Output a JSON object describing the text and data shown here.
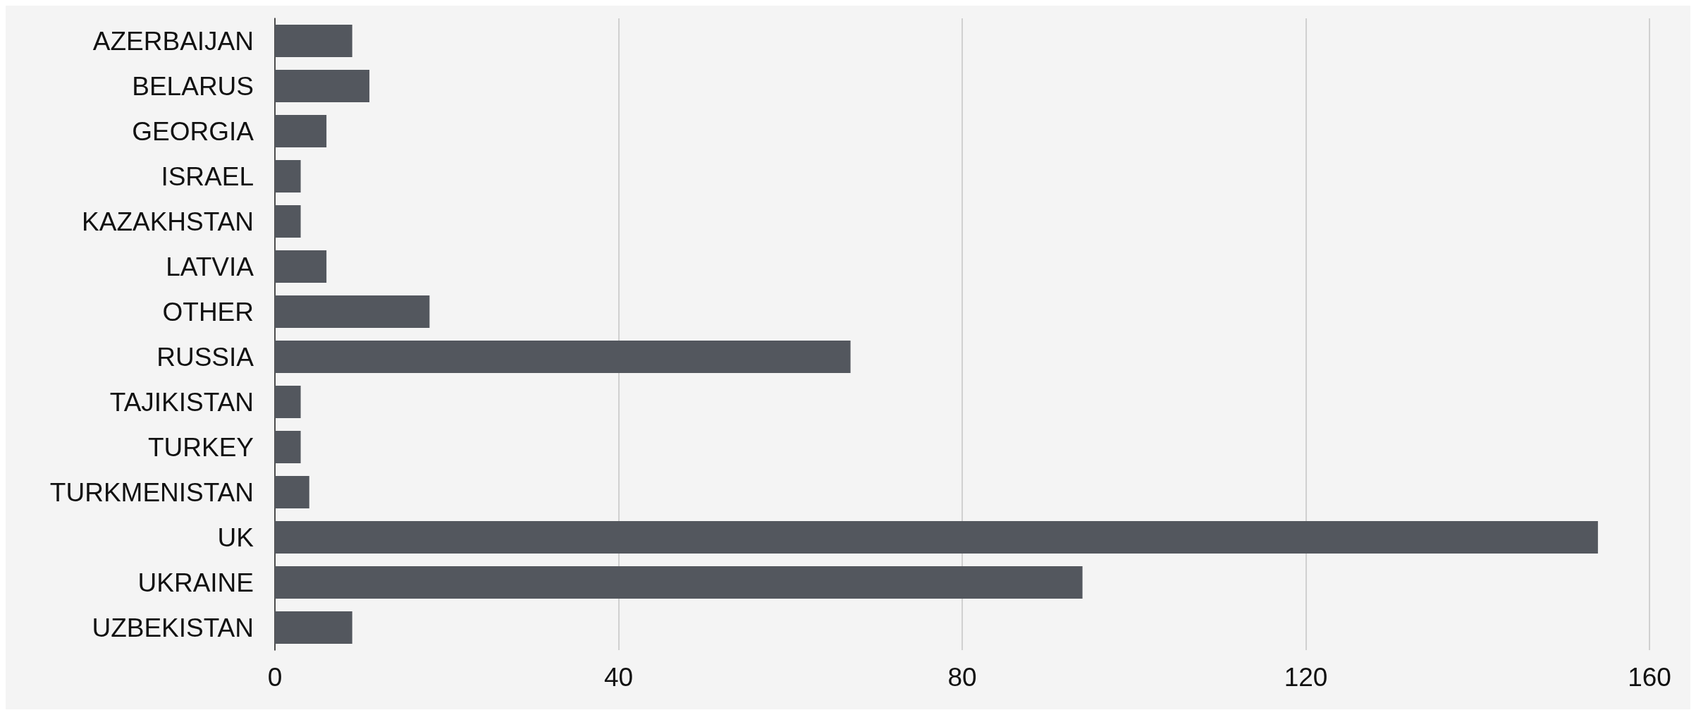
{
  "chart_data": {
    "type": "bar",
    "orientation": "horizontal",
    "categories": [
      "AZERBAIJAN",
      "BELARUS",
      "GEORGIA",
      "ISRAEL",
      "KAZAKHSTAN",
      "LATVIA",
      "OTHER",
      "RUSSIA",
      "TAJIKISTAN",
      "TURKEY",
      "TURKMENISTAN",
      "UK",
      "UKRAINE",
      "UZBEKISTAN"
    ],
    "values": [
      9,
      11,
      6,
      3,
      3,
      6,
      18,
      67,
      3,
      3,
      4,
      154,
      94,
      9
    ],
    "color": "#53575e",
    "xlim": [
      0,
      160
    ],
    "xticks": [
      0,
      40,
      80,
      120,
      160
    ],
    "grid": "x"
  }
}
